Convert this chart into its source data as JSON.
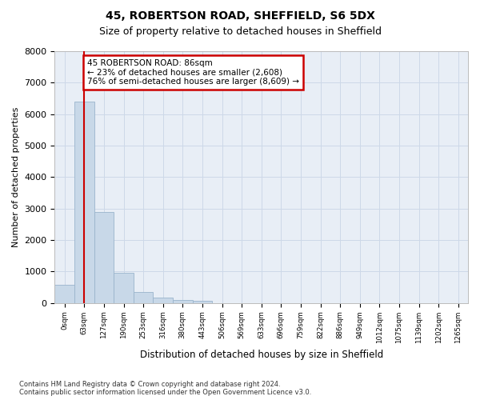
{
  "title_line1": "45, ROBERTSON ROAD, SHEFFIELD, S6 5DX",
  "title_line2": "Size of property relative to detached houses in Sheffield",
  "xlabel": "Distribution of detached houses by size in Sheffield",
  "ylabel": "Number of detached properties",
  "footnote": "Contains HM Land Registry data © Crown copyright and database right 2024.\nContains public sector information licensed under the Open Government Licence v3.0.",
  "bin_labels": [
    "0sqm",
    "63sqm",
    "127sqm",
    "190sqm",
    "253sqm",
    "316sqm",
    "380sqm",
    "443sqm",
    "506sqm",
    "569sqm",
    "633sqm",
    "696sqm",
    "759sqm",
    "822sqm",
    "886sqm",
    "949sqm",
    "1012sqm",
    "1075sqm",
    "1139sqm",
    "1202sqm",
    "1265sqm"
  ],
  "bar_values": [
    580,
    6400,
    2900,
    960,
    340,
    155,
    100,
    60,
    0,
    0,
    0,
    0,
    0,
    0,
    0,
    0,
    0,
    0,
    0,
    0,
    0
  ],
  "bar_color": "#c8d8e8",
  "bar_edge_color": "#9ab4cc",
  "property_bin_index": 1,
  "vline_color": "#cc0000",
  "annotation_text": "45 ROBERTSON ROAD: 86sqm\n← 23% of detached houses are smaller (2,608)\n76% of semi-detached houses are larger (8,609) →",
  "annotation_box_color": "#cc0000",
  "ylim": [
    0,
    8000
  ],
  "yticks": [
    0,
    1000,
    2000,
    3000,
    4000,
    5000,
    6000,
    7000,
    8000
  ],
  "grid_color": "#cdd8e8",
  "background_color": "#e8eef6"
}
